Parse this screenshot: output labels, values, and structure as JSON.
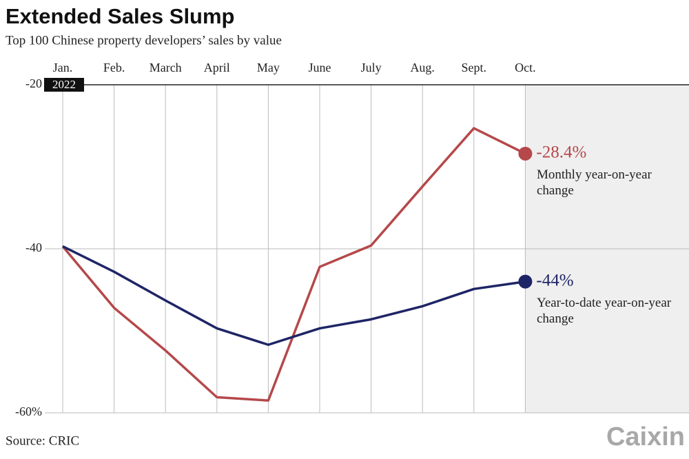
{
  "chart_data": {
    "type": "line",
    "title": "Extended Sales Slump",
    "subtitle": "Top 100 Chinese property developers’ sales by value",
    "source": "Source: CRIC",
    "logo": "Caixin",
    "year_label": "2022",
    "categories": [
      "Jan.",
      "Feb.",
      "March",
      "April",
      "May",
      "June",
      "July",
      "Aug.",
      "Sept.",
      "Oct."
    ],
    "ylim": [
      -60,
      -20
    ],
    "yticks": [
      -20,
      -40,
      {
        "value": -60,
        "label": "-60%"
      }
    ],
    "grid": true,
    "series": [
      {
        "name": "Monthly year-on-year change",
        "color": "#b5484a",
        "values": [
          -39.7,
          -47.2,
          -52.4,
          -58.1,
          -58.5,
          -42.2,
          -39.6,
          -32.4,
          -25.3,
          -28.4
        ],
        "value_labels": [
          null,
          null,
          null,
          null,
          null,
          null,
          null,
          null,
          null,
          "-28.4%"
        ]
      },
      {
        "name": "Year-to-date year-on-year change",
        "color": "#1e2566",
        "values": [
          -39.7,
          -42.8,
          -46.3,
          -49.7,
          -51.7,
          -49.7,
          -48.6,
          -47.0,
          -44.9,
          -44
        ],
        "value_labels": [
          null,
          null,
          null,
          null,
          null,
          null,
          null,
          null,
          null,
          "-44%"
        ]
      }
    ]
  }
}
